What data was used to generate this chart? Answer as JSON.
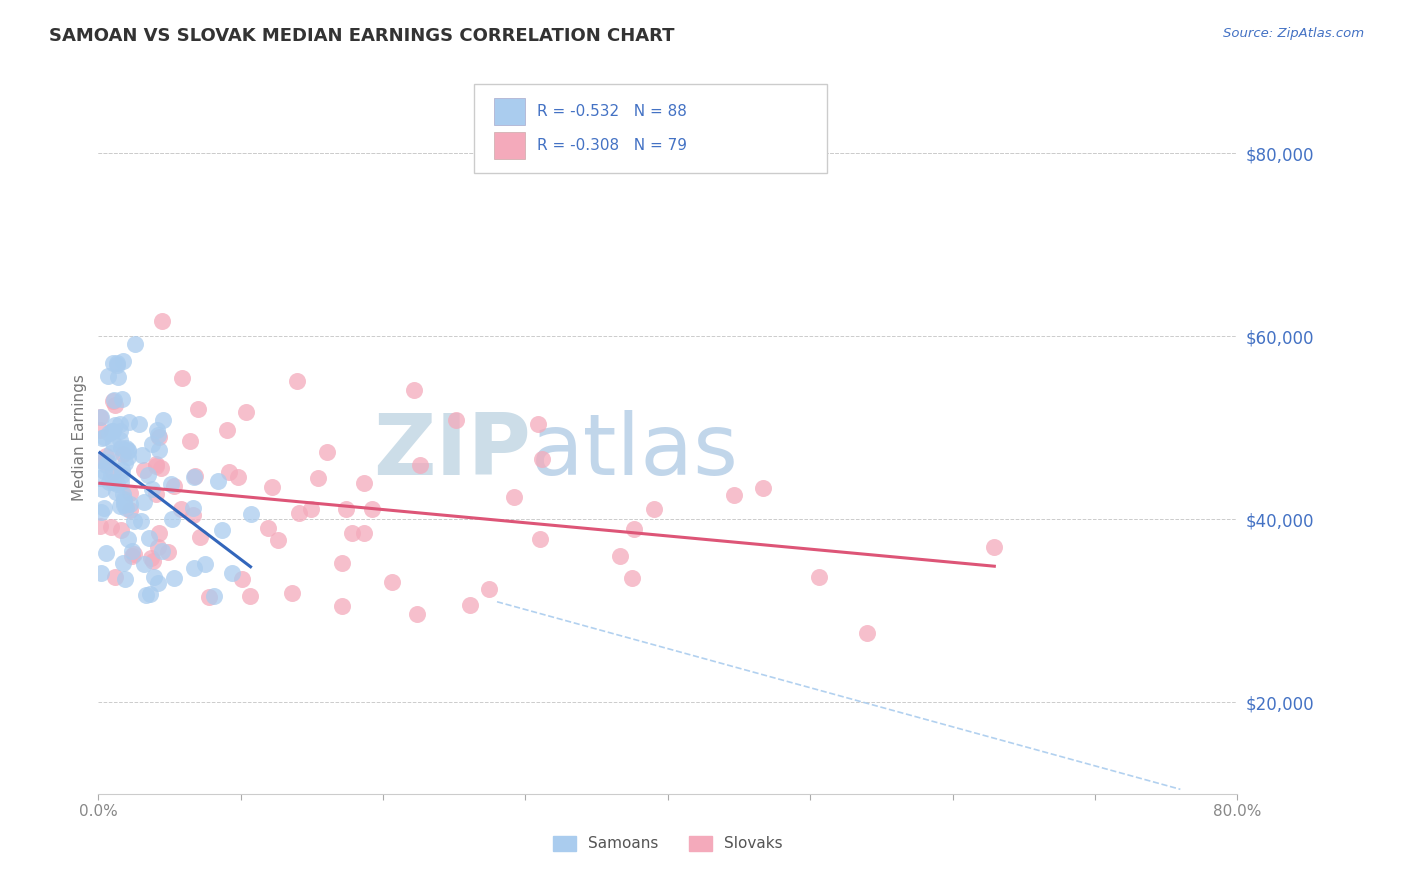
{
  "title": "SAMOAN VS SLOVAK MEDIAN EARNINGS CORRELATION CHART",
  "source_text": "Source: ZipAtlas.com",
  "ylabel": "Median Earnings",
  "xlim": [
    0.0,
    0.8
  ],
  "ylim": [
    10000,
    88000
  ],
  "yticks": [
    20000,
    40000,
    60000,
    80000
  ],
  "ytick_labels": [
    "$20,000",
    "$40,000",
    "$60,000",
    "$80,000"
  ],
  "xtick_ends": [
    "0.0%",
    "80.0%"
  ],
  "samoan_color": "#aaccee",
  "slovak_color": "#f4aabb",
  "samoan_R": -0.532,
  "samoan_N": 88,
  "slovak_R": -0.308,
  "slovak_N": 79,
  "trend_blue": "#3366bb",
  "trend_pink": "#dd5577",
  "watermark_zip": "ZIP",
  "watermark_atlas": "atlas",
  "watermark_color_zip": "#c8ddf0",
  "watermark_color_atlas": "#b8cce8",
  "legend_color": "#4472c4",
  "background_color": "#ffffff",
  "grid_color": "#cccccc",
  "title_color": "#333333",
  "ylabel_color": "#777777",
  "ytick_label_color": "#4472c4",
  "xtick_label_color": "#888888",
  "legend_label1": "Samoans",
  "legend_label2": "Slovaks"
}
